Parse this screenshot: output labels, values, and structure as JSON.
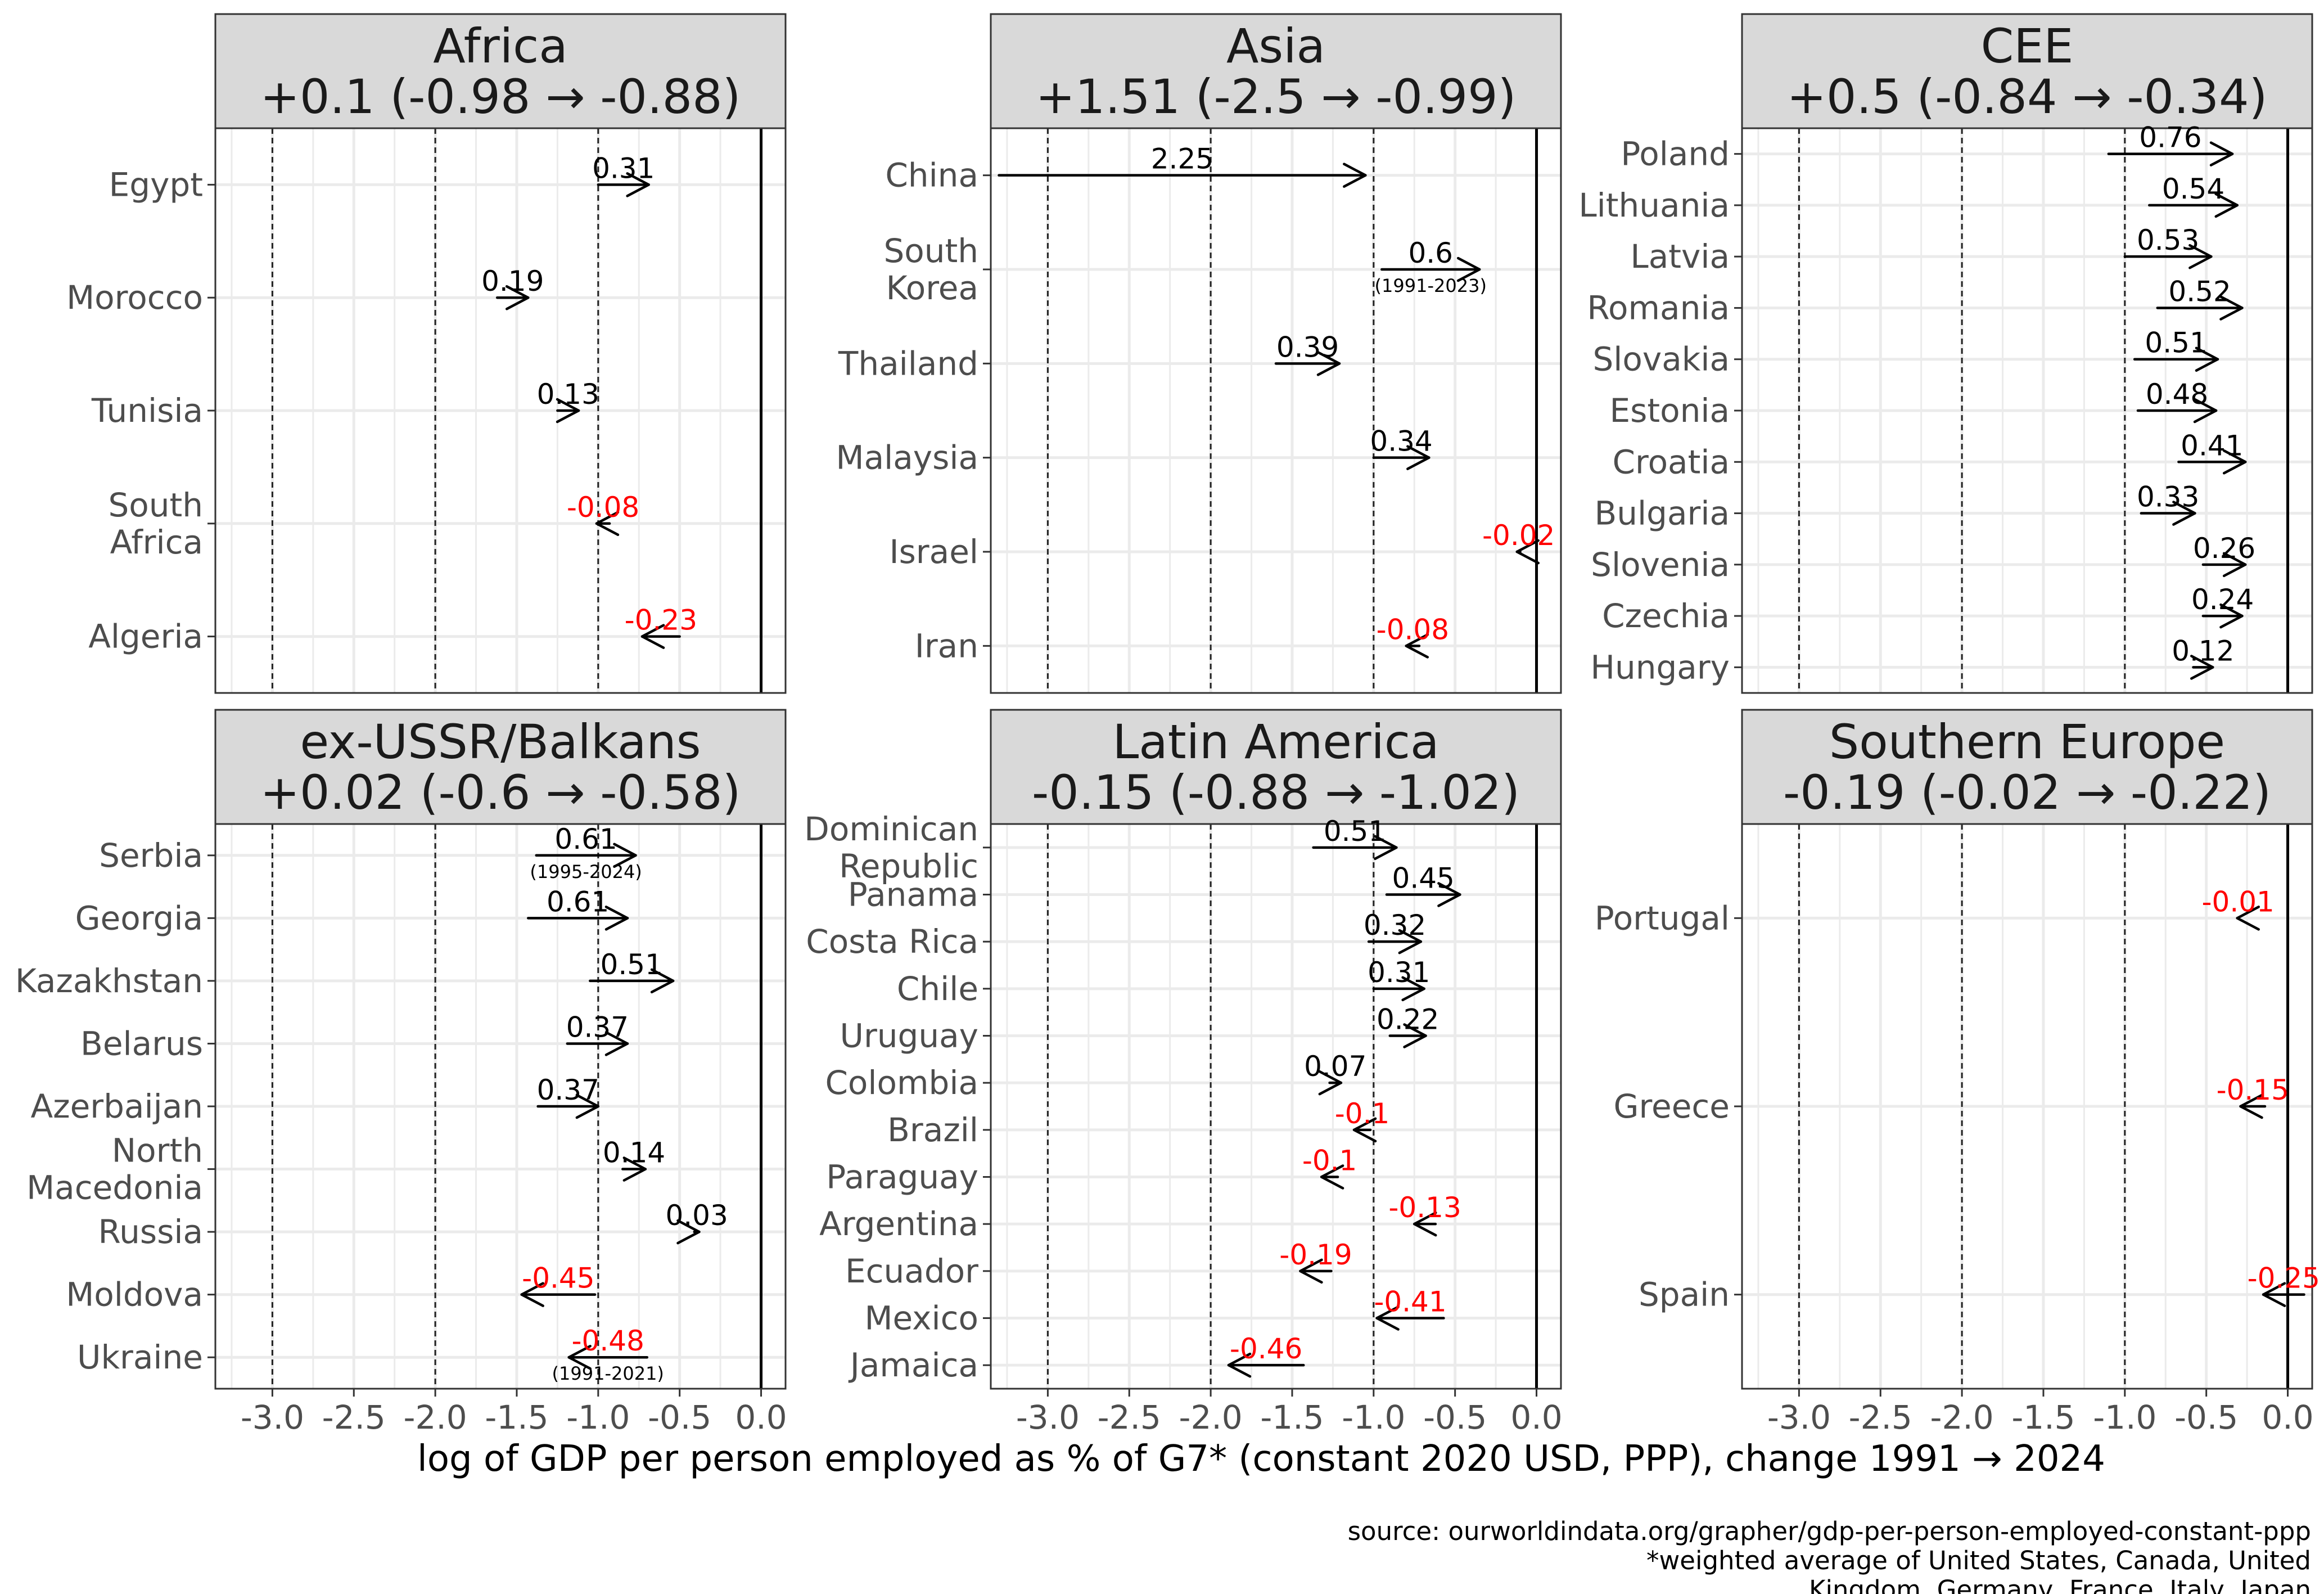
{
  "chart_data": {
    "type": "arrow",
    "xlabel": "log of GDP per person employed as % of G7* (constant 2020 USD, PPP), change 1991 → 2024",
    "xlim": [
      -3.35,
      0.15
    ],
    "xticks": [
      -3.0,
      -2.5,
      -2.0,
      -1.5,
      -1.0,
      -0.5,
      0.0
    ],
    "xtick_labels": [
      "-3.0",
      "-2.5",
      "-2.0",
      "-1.5",
      "-1.0",
      "-0.5",
      "0.0"
    ],
    "reference_lines": [
      -3,
      -2,
      -1
    ],
    "colors": {
      "positive": "#000000",
      "negative": "#ff0000",
      "strip": "#d9d9d9"
    },
    "caption": [
      "source: ourworldindata.org/grapher/gdp-per-person-employed-constant-ppp",
      "*weighted average of United States, Canada, United",
      "Kingdom, Germany, France, Italy, Japan"
    ],
    "panels": [
      {
        "title": "Africa",
        "subtitle": "+0.1 (-0.98 → -0.88)",
        "rows": [
          {
            "label": [
              "Egypt"
            ],
            "start": -1.0,
            "end": -0.69,
            "change": "0.31"
          },
          {
            "label": [
              "Morocco"
            ],
            "start": -1.62,
            "end": -1.43,
            "change": "0.19"
          },
          {
            "label": [
              "Tunisia"
            ],
            "start": -1.25,
            "end": -1.12,
            "change": "0.13"
          },
          {
            "label": [
              "South",
              "Africa"
            ],
            "start": -0.93,
            "end": -1.01,
            "change": "-0.08"
          },
          {
            "label": [
              "Algeria"
            ],
            "start": -0.5,
            "end": -0.73,
            "change": "-0.23"
          }
        ]
      },
      {
        "title": "Asia",
        "subtitle": "+1.51 (-2.5 → -0.99)",
        "rows": [
          {
            "label": [
              "China"
            ],
            "start": -3.3,
            "end": -1.05,
            "change": "2.25"
          },
          {
            "label": [
              "South",
              "Korea"
            ],
            "start": -0.95,
            "end": -0.35,
            "change": "0.6",
            "period": "(1991-2023)"
          },
          {
            "label": [
              "Thailand"
            ],
            "start": -1.6,
            "end": -1.21,
            "change": "0.39"
          },
          {
            "label": [
              "Malaysia"
            ],
            "start": -1.0,
            "end": -0.66,
            "change": "0.34"
          },
          {
            "label": [
              "Israel"
            ],
            "start": -0.1,
            "end": -0.12,
            "change": "-0.02"
          },
          {
            "label": [
              "Iran"
            ],
            "start": -0.72,
            "end": -0.8,
            "change": "-0.08"
          }
        ]
      },
      {
        "title": "CEE",
        "subtitle": "+0.5 (-0.84 → -0.34)",
        "rows": [
          {
            "label": [
              "Poland"
            ],
            "start": -1.1,
            "end": -0.34,
            "change": "0.76"
          },
          {
            "label": [
              "Lithuania"
            ],
            "start": -0.85,
            "end": -0.31,
            "change": "0.54"
          },
          {
            "label": [
              "Latvia"
            ],
            "start": -1.0,
            "end": -0.47,
            "change": "0.53"
          },
          {
            "label": [
              "Romania"
            ],
            "start": -0.8,
            "end": -0.28,
            "change": "0.52"
          },
          {
            "label": [
              "Slovakia"
            ],
            "start": -0.94,
            "end": -0.43,
            "change": "0.51"
          },
          {
            "label": [
              "Estonia"
            ],
            "start": -0.92,
            "end": -0.44,
            "change": "0.48"
          },
          {
            "label": [
              "Croatia"
            ],
            "start": -0.67,
            "end": -0.26,
            "change": "0.41"
          },
          {
            "label": [
              "Bulgaria"
            ],
            "start": -0.9,
            "end": -0.57,
            "change": "0.33"
          },
          {
            "label": [
              "Slovenia"
            ],
            "start": -0.52,
            "end": -0.26,
            "change": "0.26"
          },
          {
            "label": [
              "Czechia"
            ],
            "start": -0.52,
            "end": -0.28,
            "change": "0.24"
          },
          {
            "label": [
              "Hungary"
            ],
            "start": -0.58,
            "end": -0.46,
            "change": "0.12"
          }
        ]
      },
      {
        "title": "ex-USSR/Balkans",
        "subtitle": "+0.02 (-0.6 → -0.58)",
        "rows": [
          {
            "label": [
              "Serbia"
            ],
            "start": -1.38,
            "end": -0.77,
            "change": "0.61",
            "period": "(1995-2024)"
          },
          {
            "label": [
              "Georgia"
            ],
            "start": -1.43,
            "end": -0.82,
            "change": "0.61"
          },
          {
            "label": [
              "Kazakhstan"
            ],
            "start": -1.05,
            "end": -0.54,
            "change": "0.51"
          },
          {
            "label": [
              "Belarus"
            ],
            "start": -1.19,
            "end": -0.82,
            "change": "0.37"
          },
          {
            "label": [
              "Azerbaijan"
            ],
            "start": -1.37,
            "end": -1.0,
            "change": "0.37"
          },
          {
            "label": [
              "North",
              "Macedonia"
            ],
            "start": -0.85,
            "end": -0.71,
            "change": "0.14"
          },
          {
            "label": [
              "Russia"
            ],
            "start": -0.41,
            "end": -0.38,
            "change": "0.03"
          },
          {
            "label": [
              "Moldova"
            ],
            "start": -1.02,
            "end": -1.47,
            "change": "-0.45"
          },
          {
            "label": [
              "Ukraine"
            ],
            "start": -0.7,
            "end": -1.18,
            "change": "-0.48",
            "period": "(1991-2021)"
          }
        ]
      },
      {
        "title": "Latin America",
        "subtitle": "-0.15 (-0.88 → -1.02)",
        "rows": [
          {
            "label": [
              "Dominican",
              "Republic"
            ],
            "start": -1.37,
            "end": -0.86,
            "change": "0.51"
          },
          {
            "label": [
              "Panama"
            ],
            "start": -0.92,
            "end": -0.47,
            "change": "0.45"
          },
          {
            "label": [
              "Costa Rica"
            ],
            "start": -1.03,
            "end": -0.71,
            "change": "0.32"
          },
          {
            "label": [
              "Chile"
            ],
            "start": -1.0,
            "end": -0.69,
            "change": "0.31"
          },
          {
            "label": [
              "Uruguay"
            ],
            "start": -0.9,
            "end": -0.68,
            "change": "0.22"
          },
          {
            "label": [
              "Colombia"
            ],
            "start": -1.27,
            "end": -1.2,
            "change": "0.07"
          },
          {
            "label": [
              "Brazil"
            ],
            "start": -1.02,
            "end": -1.12,
            "change": "-0.1"
          },
          {
            "label": [
              "Paraguay"
            ],
            "start": -1.22,
            "end": -1.32,
            "change": "-0.1"
          },
          {
            "label": [
              "Argentina"
            ],
            "start": -0.62,
            "end": -0.75,
            "change": "-0.13"
          },
          {
            "label": [
              "Ecuador"
            ],
            "start": -1.26,
            "end": -1.45,
            "change": "-0.19"
          },
          {
            "label": [
              "Mexico"
            ],
            "start": -0.57,
            "end": -0.98,
            "change": "-0.41"
          },
          {
            "label": [
              "Jamaica"
            ],
            "start": -1.43,
            "end": -1.89,
            "change": "-0.46"
          }
        ]
      },
      {
        "title": "Southern Europe",
        "subtitle": "-0.19 (-0.02 → -0.22)",
        "rows": [
          {
            "label": [
              "Portugal"
            ],
            "start": -0.3,
            "end": -0.31,
            "change": "-0.01"
          },
          {
            "label": [
              "Greece"
            ],
            "start": -0.14,
            "end": -0.29,
            "change": "-0.15"
          },
          {
            "label": [
              "Spain"
            ],
            "start": 0.1,
            "end": -0.15,
            "change": "-0.25"
          }
        ]
      }
    ]
  }
}
